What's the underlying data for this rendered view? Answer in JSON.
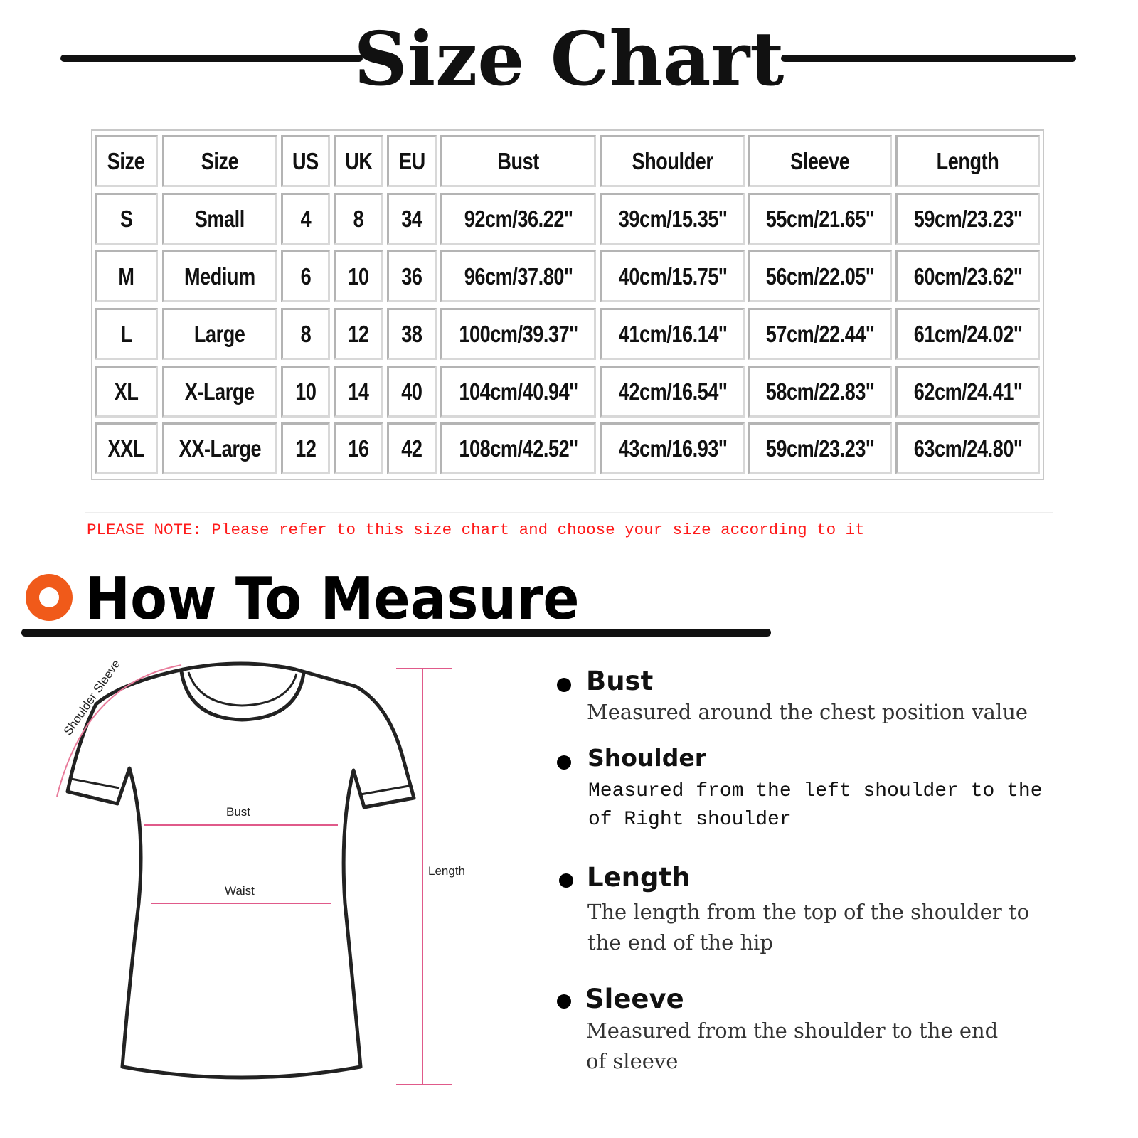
{
  "header": {
    "title": "Size Chart"
  },
  "table": {
    "headers": [
      "Size",
      "Size",
      "US",
      "UK",
      "EU",
      "Bust",
      "Shoulder",
      "Sleeve",
      "Length"
    ],
    "rows": [
      [
        "S",
        "Small",
        "4",
        "8",
        "34",
        "92cm/36.22''",
        "39cm/15.35''",
        "55cm/21.65''",
        "59cm/23.23''"
      ],
      [
        "M",
        "Medium",
        "6",
        "10",
        "36",
        "96cm/37.80''",
        "40cm/15.75''",
        "56cm/22.05''",
        "60cm/23.62''"
      ],
      [
        "L",
        "Large",
        "8",
        "12",
        "38",
        "100cm/39.37''",
        "41cm/16.14''",
        "57cm/22.44''",
        "61cm/24.02''"
      ],
      [
        "XL",
        "X-Large",
        "10",
        "14",
        "40",
        "104cm/40.94''",
        "42cm/16.54''",
        "58cm/22.83''",
        "62cm/24.41''"
      ],
      [
        "XXL",
        "XX-Large",
        "12",
        "16",
        "42",
        "108cm/42.52''",
        "43cm/16.93''",
        "59cm/23.23''",
        "63cm/24.80''"
      ]
    ]
  },
  "note": "PLEASE NOTE: Please refer to this size chart and choose your size according to it",
  "how_to_measure": {
    "title": "How To Measure",
    "accent_color": "#f05a1a",
    "diagram_labels": {
      "shoulder_sleeve": "Shoulder Sleeve",
      "bust": "Bust",
      "waist": "Waist",
      "length": "Length"
    },
    "items": [
      {
        "name": "Bust",
        "desc": [
          "Measured around the chest position value"
        ]
      },
      {
        "name": "Shoulder",
        "desc": [
          "Measured from the left shoulder to the",
          "of Right shoulder"
        ]
      },
      {
        "name": "Length",
        "desc": [
          "The length from the top of the shoulder to",
          "the end of the hip"
        ]
      },
      {
        "name": "Sleeve",
        "desc": [
          "Measured from the shoulder to the end",
          "of sleeve"
        ]
      }
    ]
  }
}
